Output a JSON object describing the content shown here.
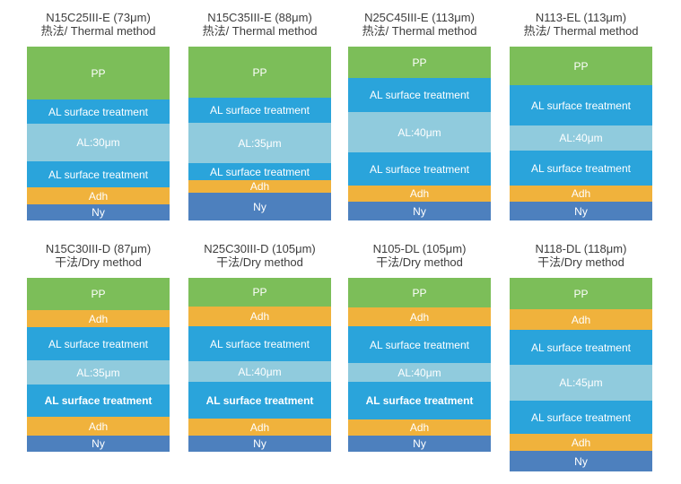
{
  "page": {
    "background": "#ffffff"
  },
  "colors": {
    "pp": "#7cbe59",
    "adh": "#f0b23c",
    "al_surface": "#2aa4db",
    "al_core": "#90cbdd",
    "ny": "#4d80be",
    "title_text": "#3d3d3d",
    "layer_text": "#ffffff"
  },
  "panels": [
    {
      "name": "N15C25III-E",
      "title": "N15C25III-E (73μm)",
      "subtitle": "热法/ Thermal method",
      "method": "thermal",
      "row": 0,
      "col": 0,
      "layers": [
        {
          "label": "PP",
          "type": "pp",
          "height": 59
        },
        {
          "label": "AL surface treatment",
          "type": "al_surface",
          "height": 27
        },
        {
          "label": "AL:30μm",
          "type": "al_core",
          "height": 42
        },
        {
          "label": "AL surface treatment",
          "type": "al_surface",
          "height": 29
        },
        {
          "label": "Adh",
          "type": "adh",
          "height": 19
        },
        {
          "label": "Ny",
          "type": "ny",
          "height": 18
        }
      ]
    },
    {
      "name": "N15C35III-E",
      "title": "N15C35III-E (88μm)",
      "subtitle": "热法/ Thermal method",
      "method": "thermal",
      "row": 0,
      "col": 1,
      "layers": [
        {
          "label": "PP",
          "type": "pp",
          "height": 57
        },
        {
          "label": "AL surface treatment",
          "type": "al_surface",
          "height": 28
        },
        {
          "label": "AL:35μm",
          "type": "al_core",
          "height": 45
        },
        {
          "label": "AL surface treatment",
          "type": "al_surface",
          "height": 19
        },
        {
          "label": "Adh",
          "type": "adh",
          "height": 14
        },
        {
          "label": "Ny",
          "type": "ny",
          "height": 31
        }
      ]
    },
    {
      "name": "N25C45III-E",
      "title": "N25C45III-E (113μm)",
      "subtitle": "热法/ Thermal method",
      "method": "thermal",
      "row": 0,
      "col": 2,
      "layers": [
        {
          "label": "PP",
          "type": "pp",
          "height": 35
        },
        {
          "label": "AL surface treatment",
          "type": "al_surface",
          "height": 38
        },
        {
          "label": "AL:40μm",
          "type": "al_core",
          "height": 45
        },
        {
          "label": "AL surface treatment",
          "type": "al_surface",
          "height": 37
        },
        {
          "label": "Adh",
          "type": "adh",
          "height": 18
        },
        {
          "label": "Ny",
          "type": "ny",
          "height": 21
        }
      ]
    },
    {
      "name": "N113-EL",
      "title": "N113-EL (113μm)",
      "subtitle": "热法/ Thermal method",
      "method": "thermal",
      "row": 0,
      "col": 3,
      "layers": [
        {
          "label": "PP",
          "type": "pp",
          "height": 43
        },
        {
          "label": "AL surface treatment",
          "type": "al_surface",
          "height": 45
        },
        {
          "label": "AL:40μm",
          "type": "al_core",
          "height": 28
        },
        {
          "label": "AL surface treatment",
          "type": "al_surface",
          "height": 39
        },
        {
          "label": "Adh",
          "type": "adh",
          "height": 18
        },
        {
          "label": "Ny",
          "type": "ny",
          "height": 21
        }
      ]
    },
    {
      "name": "N15C30III-D",
      "title": "N15C30III-D (87μm)",
      "subtitle": "干法/Dry method",
      "method": "dry",
      "row": 1,
      "col": 0,
      "layers": [
        {
          "label": "PP",
          "type": "pp",
          "height": 36
        },
        {
          "label": "Adh",
          "type": "adh",
          "height": 19
        },
        {
          "label": "AL surface treatment",
          "type": "al_surface",
          "height": 37
        },
        {
          "label": "AL:35μm",
          "type": "al_core",
          "height": 27
        },
        {
          "label": "AL surface treatment",
          "type": "al_surface",
          "height": 36,
          "bold": true
        },
        {
          "label": "Adh",
          "type": "adh",
          "height": 21
        },
        {
          "label": "Ny",
          "type": "ny",
          "height": 18
        }
      ]
    },
    {
      "name": "N25C30III-D",
      "title": "N25C30III-D (105μm)",
      "subtitle": "干法/Dry method",
      "method": "dry",
      "row": 1,
      "col": 1,
      "layers": [
        {
          "label": "PP",
          "type": "pp",
          "height": 32
        },
        {
          "label": "Adh",
          "type": "adh",
          "height": 22
        },
        {
          "label": "AL surface treatment",
          "type": "al_surface",
          "height": 39
        },
        {
          "label": "AL:40μm",
          "type": "al_core",
          "height": 23
        },
        {
          "label": "AL surface treatment",
          "type": "al_surface",
          "height": 41,
          "bold": true
        },
        {
          "label": "Adh",
          "type": "adh",
          "height": 19
        },
        {
          "label": "Ny",
          "type": "ny",
          "height": 18
        }
      ]
    },
    {
      "name": "N105-DL",
      "title": "N105-DL (105μm)",
      "subtitle": "干法/Dry method",
      "method": "dry",
      "row": 1,
      "col": 2,
      "layers": [
        {
          "label": "PP",
          "type": "pp",
          "height": 33
        },
        {
          "label": "Adh",
          "type": "adh",
          "height": 21
        },
        {
          "label": "AL surface treatment",
          "type": "al_surface",
          "height": 41
        },
        {
          "label": "AL:40μm",
          "type": "al_core",
          "height": 21
        },
        {
          "label": "AL surface treatment",
          "type": "al_surface",
          "height": 42,
          "bold": true
        },
        {
          "label": "Adh",
          "type": "adh",
          "height": 18
        },
        {
          "label": "Ny",
          "type": "ny",
          "height": 18
        }
      ]
    },
    {
      "name": "N118-DL",
      "title": "N118-DL (118μm)",
      "subtitle": "干法/Dry method",
      "method": "dry",
      "row": 1,
      "col": 3,
      "layers": [
        {
          "label": "PP",
          "type": "pp",
          "height": 35
        },
        {
          "label": "Adh",
          "type": "adh",
          "height": 23
        },
        {
          "label": "AL surface treatment",
          "type": "al_surface",
          "height": 39
        },
        {
          "label": "AL:45μm",
          "type": "al_core",
          "height": 40
        },
        {
          "label": "AL surface treatment",
          "type": "al_surface",
          "height": 37
        },
        {
          "label": "Adh",
          "type": "adh",
          "height": 19
        },
        {
          "label": "Ny",
          "type": "ny",
          "height": 23
        }
      ]
    }
  ]
}
